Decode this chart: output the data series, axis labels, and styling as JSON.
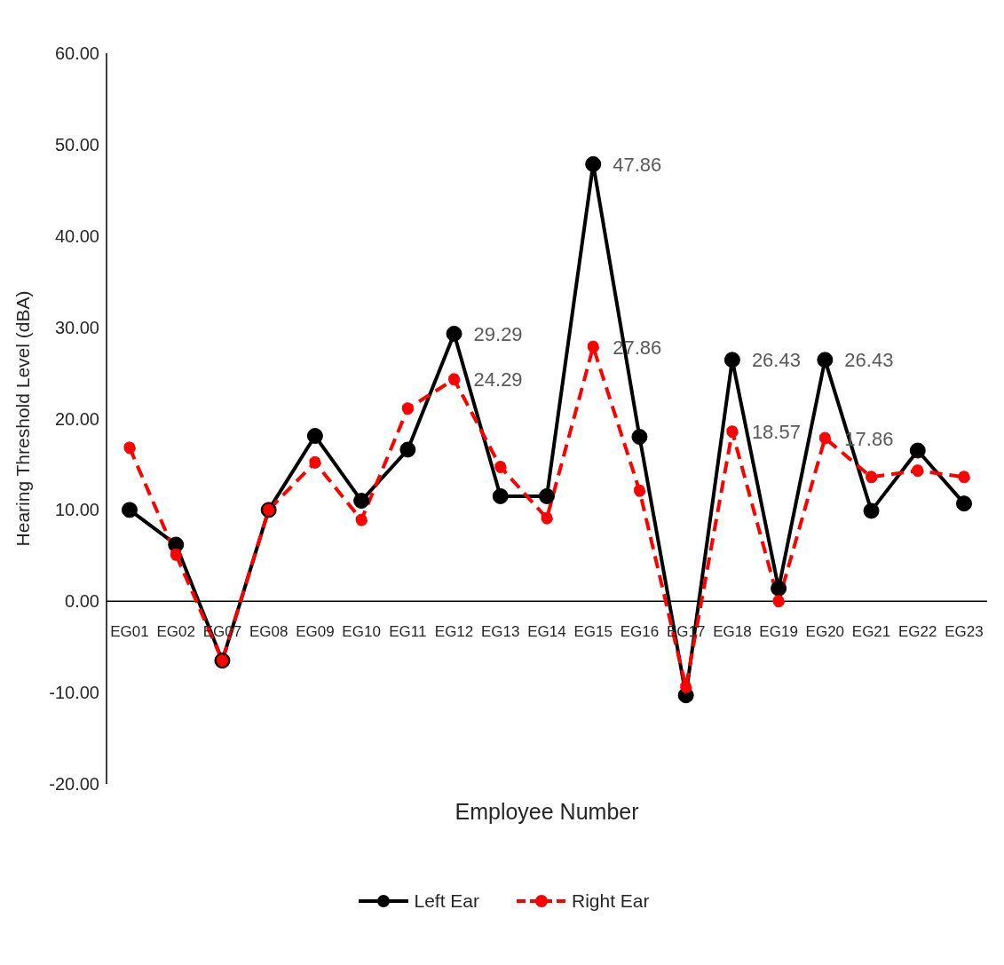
{
  "chart_data": {
    "type": "line",
    "xlabel": "Employee Number",
    "ylabel": "Hearing Threshold Level (dBA)",
    "categories": [
      "EG01",
      "EG02",
      "EG07",
      "EG08",
      "EG09",
      "EG10",
      "EG11",
      "EG12",
      "EG13",
      "EG14",
      "EG15",
      "EG16",
      "EG17",
      "EG18",
      "EG19",
      "EG20",
      "EG21",
      "EG22",
      "EG23"
    ],
    "series": [
      {
        "name": "Left Ear",
        "color": "#000000",
        "line_style": "solid",
        "values": [
          10.0,
          6.2,
          -6.5,
          10.0,
          18.1,
          11.0,
          16.6,
          29.29,
          11.5,
          11.5,
          47.86,
          18.0,
          -10.3,
          26.43,
          1.4,
          26.43,
          9.9,
          16.5,
          10.7
        ],
        "value_labels": [
          null,
          null,
          null,
          null,
          null,
          null,
          null,
          "29.29",
          null,
          null,
          "47.86",
          null,
          null,
          "26.43",
          null,
          "26.43",
          null,
          null,
          null
        ]
      },
      {
        "name": "Right Ear",
        "color": "#ff0000",
        "line_style": "dashed",
        "values": [
          16.8,
          5.1,
          -6.5,
          10.0,
          15.2,
          8.9,
          21.1,
          24.29,
          14.7,
          9.1,
          27.86,
          12.1,
          -9.4,
          18.57,
          0.0,
          17.86,
          13.6,
          14.3,
          13.6
        ],
        "value_labels": [
          null,
          null,
          null,
          null,
          null,
          null,
          null,
          "24.29",
          null,
          null,
          "27.86",
          null,
          null,
          "18.57",
          null,
          "17.86",
          null,
          null,
          null
        ]
      }
    ],
    "ylim": [
      -20,
      60
    ],
    "yticks": [
      {
        "value": -20,
        "label": "-20.00"
      },
      {
        "value": -10,
        "label": "-10.00"
      },
      {
        "value": 0,
        "label": "0.00"
      },
      {
        "value": 10,
        "label": "10.00"
      },
      {
        "value": 20,
        "label": "20.00"
      },
      {
        "value": 30,
        "label": "30.00"
      },
      {
        "value": 40,
        "label": "40.00"
      },
      {
        "value": 50,
        "label": "50.00"
      },
      {
        "value": 60,
        "label": "60.00"
      }
    ],
    "grid": false,
    "legend": "bottom",
    "marker": "circle"
  }
}
